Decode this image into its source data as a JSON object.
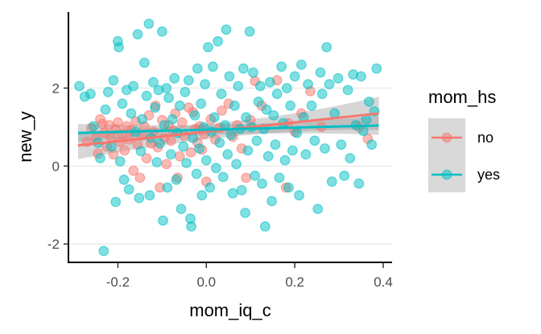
{
  "chart_data": {
    "type": "scatter",
    "title": "",
    "xlabel": "mom_iq_c",
    "ylabel": "new_y",
    "xlim": [
      -0.31,
      0.42
    ],
    "ylim": [
      -2.45,
      3.95
    ],
    "x_ticks": [
      -0.2,
      0.0,
      0.2,
      0.4
    ],
    "x_tick_labels": [
      "-0.2",
      "0.0",
      "0.2",
      "0.4"
    ],
    "y_ticks": [
      -2,
      0,
      2
    ],
    "y_tick_labels": [
      "-2",
      "0",
      "2"
    ],
    "grid": "horizontal-major",
    "legend": {
      "title": "mom_hs",
      "placement": "right",
      "entries": [
        {
          "label": "no",
          "color": "#F8766D"
        },
        {
          "label": "yes",
          "color": "#00BFC4"
        }
      ]
    },
    "series": [
      {
        "name": "no",
        "color": "#F8766D",
        "fit": {
          "x": [
            -0.29,
            0.39
          ],
          "y": [
            0.53,
            1.35
          ],
          "ci_low": [
            0.2,
            0.95
          ],
          "ci_high": [
            0.88,
            1.78
          ]
        },
        "points": [
          [
            -0.27,
            0.62
          ],
          [
            -0.26,
            0.98
          ],
          [
            -0.25,
            0.72
          ],
          [
            -0.245,
            0.32
          ],
          [
            -0.24,
            1.2
          ],
          [
            -0.235,
            1.08
          ],
          [
            -0.23,
            0.85
          ],
          [
            -0.225,
            0.5
          ],
          [
            -0.22,
            1.05
          ],
          [
            -0.215,
            0.72
          ],
          [
            -0.21,
            0.3
          ],
          [
            -0.205,
            0.95
          ],
          [
            -0.2,
            1.12
          ],
          [
            -0.195,
            0.62
          ],
          [
            -0.19,
            0.82
          ],
          [
            -0.185,
            0.4
          ],
          [
            -0.18,
            1.02
          ],
          [
            -0.175,
            0.68
          ],
          [
            -0.17,
            0.92
          ],
          [
            -0.165,
            -0.12
          ],
          [
            -0.16,
            1.15
          ],
          [
            -0.155,
            0.55
          ],
          [
            -0.15,
            -0.3
          ],
          [
            -0.145,
            0.78
          ],
          [
            -0.14,
            1.02
          ],
          [
            -0.135,
            0.2
          ],
          [
            -0.13,
            1.3
          ],
          [
            -0.125,
            0.58
          ],
          [
            -0.12,
            0.88
          ],
          [
            -0.115,
            1.55
          ],
          [
            -0.11,
            0.48
          ],
          [
            -0.105,
            -0.55
          ],
          [
            -0.1,
            1.18
          ],
          [
            -0.095,
            0.72
          ],
          [
            -0.09,
            0.05
          ],
          [
            -0.085,
            1.05
          ],
          [
            -0.08,
            0.65
          ],
          [
            -0.075,
            0.9
          ],
          [
            -0.07,
            1.35
          ],
          [
            -0.065,
            -0.3
          ],
          [
            -0.06,
            0.25
          ],
          [
            -0.055,
            1.12
          ],
          [
            -0.05,
            0.78
          ],
          [
            -0.04,
            1.5
          ],
          [
            -0.035,
            0.35
          ],
          [
            -0.03,
            1.38
          ],
          [
            -0.025,
            0.95
          ],
          [
            -0.02,
            0.6
          ],
          [
            -0.015,
            1.02
          ],
          [
            -0.01,
            0.42
          ],
          [
            -0.005,
            0.82
          ],
          [
            0.0,
            -0.4
          ],
          [
            0.01,
            1.2
          ],
          [
            0.02,
            0.68
          ],
          [
            0.03,
            0.98
          ],
          [
            0.035,
            1.42
          ],
          [
            0.05,
            1.6
          ],
          [
            0.06,
            0.75
          ],
          [
            0.07,
            1.05
          ],
          [
            0.08,
            0.45
          ],
          [
            0.09,
            -0.3
          ],
          [
            0.1,
            1.18
          ],
          [
            0.11,
            2.18
          ],
          [
            0.125,
            1.55
          ],
          [
            0.16,
            2.2
          ],
          [
            0.18,
            -0.55
          ],
          [
            0.185,
            1.1
          ],
          [
            0.2,
            0.88
          ],
          [
            0.215,
            1.35
          ],
          [
            0.235,
            1.92
          ],
          [
            0.26,
            1.0
          ],
          [
            0.345,
            1.0
          ],
          [
            0.365,
            0.7
          ]
        ]
      },
      {
        "name": "yes",
        "color": "#00BFC4",
        "fit": {
          "x": [
            -0.29,
            0.39
          ],
          "y": [
            0.85,
            1.04
          ],
          "ci_low": [
            0.62,
            0.8
          ],
          "ci_high": [
            1.08,
            1.28
          ]
        },
        "points": [
          [
            -0.287,
            2.05
          ],
          [
            -0.275,
            1.78
          ],
          [
            -0.262,
            1.85
          ],
          [
            -0.255,
            1.02
          ],
          [
            -0.245,
            0.6
          ],
          [
            -0.24,
            0.2
          ],
          [
            -0.232,
            -2.18
          ],
          [
            -0.228,
            1.45
          ],
          [
            -0.222,
            1.9
          ],
          [
            -0.215,
            0.5
          ],
          [
            -0.21,
            2.2
          ],
          [
            -0.205,
            -0.92
          ],
          [
            -0.2,
            3.2
          ],
          [
            -0.198,
            3.05
          ],
          [
            -0.195,
            0.12
          ],
          [
            -0.19,
            1.6
          ],
          [
            -0.186,
            -0.35
          ],
          [
            -0.18,
            1.95
          ],
          [
            -0.175,
            -0.6
          ],
          [
            -0.17,
            1.35
          ],
          [
            -0.165,
            2.05
          ],
          [
            -0.16,
            0.88
          ],
          [
            -0.155,
            3.38
          ],
          [
            -0.152,
            -0.82
          ],
          [
            -0.148,
            0.38
          ],
          [
            -0.145,
            1.2
          ],
          [
            -0.14,
            2.65
          ],
          [
            -0.135,
            1.8
          ],
          [
            -0.13,
            3.65
          ],
          [
            -0.128,
            -0.75
          ],
          [
            -0.125,
            0.72
          ],
          [
            -0.12,
            2.15
          ],
          [
            -0.116,
            1.5
          ],
          [
            -0.112,
            0.1
          ],
          [
            -0.108,
            1.95
          ],
          [
            -0.105,
            0.58
          ],
          [
            -0.1,
            3.45
          ],
          [
            -0.098,
            -1.4
          ],
          [
            -0.095,
            1.05
          ],
          [
            -0.09,
            2.0
          ],
          [
            -0.088,
            -0.55
          ],
          [
            -0.085,
            1.75
          ],
          [
            -0.08,
            0.3
          ],
          [
            -0.077,
            1.2
          ],
          [
            -0.072,
            2.25
          ],
          [
            -0.068,
            -0.35
          ],
          [
            -0.065,
            0.85
          ],
          [
            -0.06,
            1.55
          ],
          [
            -0.057,
            -1.1
          ],
          [
            -0.052,
            0.5
          ],
          [
            -0.048,
            1.9
          ],
          [
            -0.045,
            0.08
          ],
          [
            -0.04,
            2.2
          ],
          [
            -0.036,
            -1.35
          ],
          [
            -0.034,
            -1.55
          ],
          [
            -0.03,
            0.72
          ],
          [
            -0.026,
            1.3
          ],
          [
            -0.022,
            -0.2
          ],
          [
            -0.02,
            2.5
          ],
          [
            -0.016,
            0.45
          ],
          [
            -0.012,
            1.6
          ],
          [
            -0.01,
            -0.75
          ],
          [
            -0.006,
            1.0
          ],
          [
            -0.003,
            2.1
          ],
          [
            0.0,
            0.15
          ],
          [
            0.004,
            3.05
          ],
          [
            0.008,
            -0.55
          ],
          [
            0.012,
            0.88
          ],
          [
            0.015,
            2.55
          ],
          [
            0.018,
            1.25
          ],
          [
            0.022,
            -0.05
          ],
          [
            0.026,
            3.2
          ],
          [
            0.03,
            0.6
          ],
          [
            0.034,
            1.85
          ],
          [
            0.038,
            -0.28
          ],
          [
            0.042,
            1.05
          ],
          [
            0.045,
            3.5
          ],
          [
            0.048,
            0.3
          ],
          [
            0.052,
            2.3
          ],
          [
            0.056,
            0.8
          ],
          [
            0.06,
            -0.7
          ],
          [
            0.064,
            1.55
          ],
          [
            0.068,
            0.05
          ],
          [
            0.072,
            2.05
          ],
          [
            0.076,
            0.95
          ],
          [
            0.08,
            -0.62
          ],
          [
            0.084,
            2.5
          ],
          [
            0.088,
            -1.2
          ],
          [
            0.09,
            1.25
          ],
          [
            0.094,
            0.4
          ],
          [
            0.098,
            3.45
          ],
          [
            0.102,
            1.0
          ],
          [
            0.106,
            2.4
          ],
          [
            0.11,
            -0.25
          ],
          [
            0.114,
            0.65
          ],
          [
            0.118,
            1.65
          ],
          [
            0.122,
            2.05
          ],
          [
            0.126,
            -0.45
          ],
          [
            0.13,
            0.95
          ],
          [
            0.133,
            -1.55
          ],
          [
            0.136,
            1.45
          ],
          [
            0.14,
            0.25
          ],
          [
            0.144,
            2.15
          ],
          [
            0.148,
            -0.9
          ],
          [
            0.152,
            1.3
          ],
          [
            0.156,
            0.55
          ],
          [
            0.16,
            1.85
          ],
          [
            0.165,
            -0.3
          ],
          [
            0.17,
            2.55
          ],
          [
            0.174,
            1.1
          ],
          [
            0.178,
            0.15
          ],
          [
            0.182,
            2.0
          ],
          [
            0.186,
            -0.55
          ],
          [
            0.19,
            1.55
          ],
          [
            0.195,
            0.4
          ],
          [
            0.2,
            2.3
          ],
          [
            0.205,
            0.85
          ],
          [
            0.21,
            -0.75
          ],
          [
            0.215,
            2.6
          ],
          [
            0.22,
            1.25
          ],
          [
            0.225,
            0.3
          ],
          [
            0.23,
            2.1
          ],
          [
            0.238,
            1.55
          ],
          [
            0.245,
            0.65
          ],
          [
            0.252,
            -1.1
          ],
          [
            0.258,
            2.4
          ],
          [
            0.262,
            1.85
          ],
          [
            0.268,
            0.45
          ],
          [
            0.272,
            3.05
          ],
          [
            0.278,
            2.1
          ],
          [
            0.284,
            -0.4
          ],
          [
            0.29,
            1.35
          ],
          [
            0.298,
            2.25
          ],
          [
            0.305,
            0.55
          ],
          [
            0.312,
            -0.25
          ],
          [
            0.32,
            1.95
          ],
          [
            0.325,
            0.2
          ],
          [
            0.332,
            2.35
          ],
          [
            0.338,
            1.05
          ],
          [
            0.345,
            -0.45
          ],
          [
            0.35,
            2.3
          ],
          [
            0.355,
            0.9
          ],
          [
            0.362,
            1.2
          ],
          [
            0.368,
            1.65
          ],
          [
            0.374,
            0.55
          ],
          [
            0.38,
            1.4
          ],
          [
            0.385,
            2.5
          ]
        ]
      }
    ]
  }
}
